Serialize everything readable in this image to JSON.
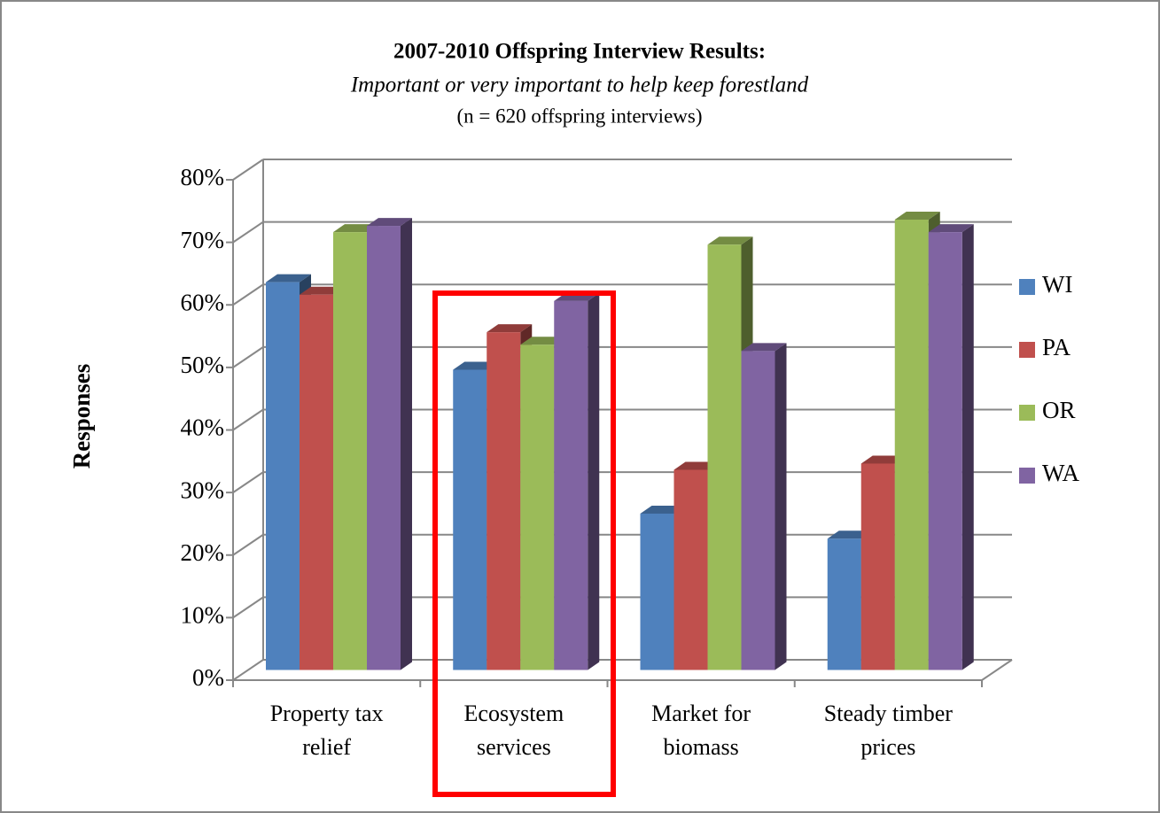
{
  "chart_data": {
    "type": "bar3d",
    "title": "2007-2010 Offspring Interview Results:",
    "subtitle": "Important or very important to help keep forestland",
    "note": "(n = 620 offspring interviews)",
    "ylabel": "Responses",
    "categories": [
      [
        "Property tax",
        "relief"
      ],
      [
        "Ecosystem",
        "services"
      ],
      [
        "Market for",
        "biomass"
      ],
      [
        "Steady timber",
        "prices"
      ]
    ],
    "series": [
      {
        "name": "WI",
        "color": "#4f81bd",
        "values": [
          62,
          48,
          25,
          21
        ]
      },
      {
        "name": "PA",
        "color": "#c0504d",
        "values": [
          60,
          54,
          32,
          33
        ]
      },
      {
        "name": "OR",
        "color": "#9bbb59",
        "values": [
          70,
          52,
          68,
          72
        ]
      },
      {
        "name": "WA",
        "color": "#8064a2",
        "values": [
          71,
          59,
          51,
          70
        ]
      }
    ],
    "ylim": [
      0,
      80
    ],
    "yticks": [
      {
        "value": 0,
        "label": "0%"
      },
      {
        "value": 10,
        "label": "10%"
      },
      {
        "value": 20,
        "label": "20%"
      },
      {
        "value": 30,
        "label": "30%"
      },
      {
        "value": 40,
        "label": "40%"
      },
      {
        "value": 50,
        "label": "50%"
      },
      {
        "value": 60,
        "label": "60%"
      },
      {
        "value": 70,
        "label": "70%"
      },
      {
        "value": 80,
        "label": "80%"
      }
    ],
    "grid": true,
    "legend": "right"
  }
}
